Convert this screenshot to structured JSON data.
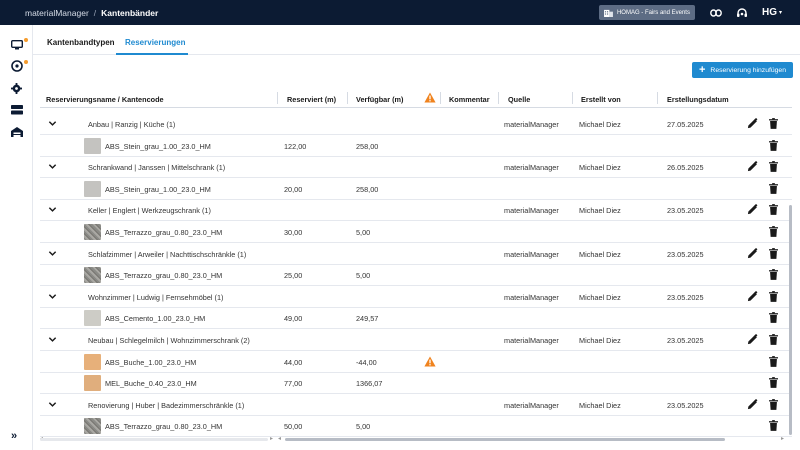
{
  "topbar": {
    "app_name": "materialManager",
    "separator": "/",
    "page_name": "Kantenbänder",
    "tenant_label": "HOMAG - Fairs and Events",
    "user_initials": "HG"
  },
  "tabs": [
    {
      "label": "Kantenbandtypen",
      "active": false
    },
    {
      "label": "Reservierungen",
      "active": true
    }
  ],
  "add_button": {
    "icon": "+",
    "label": "Reservierung hinzufügen"
  },
  "table": {
    "headers": {
      "name": "Reservierungsname / Kantencode",
      "reserved": "Reserviert (m)",
      "available": "Verfügbar (m)",
      "comment": "Kommentar",
      "source": "Quelle",
      "created_by": "Erstellt von",
      "created_date": "Erstellungsdatum"
    },
    "rows": [
      {
        "type": "group",
        "name": "Anbau | Ranzig | Küche (1)",
        "source": "materialManager",
        "created_by": "Michael Diez",
        "date": "27.05.2025"
      },
      {
        "type": "item",
        "code": "ABS_Stein_grau_1.00_23.0_HM",
        "reserved": "122,00",
        "available": "258,00",
        "swatch": "stein"
      },
      {
        "type": "group",
        "name": "Schrankwand | Janssen | Mittelschrank (1)",
        "source": "materialManager",
        "created_by": "Michael Diez",
        "date": "26.05.2025"
      },
      {
        "type": "item",
        "code": "ABS_Stein_grau_1.00_23.0_HM",
        "reserved": "20,00",
        "available": "258,00",
        "swatch": "stein"
      },
      {
        "type": "group",
        "name": "Keller | Englert | Werkzeugschrank (1)",
        "source": "materialManager",
        "created_by": "Michael Diez",
        "date": "23.05.2025"
      },
      {
        "type": "item",
        "code": "ABS_Terrazzo_grau_0.80_23.0_HM",
        "reserved": "30,00",
        "available": "5,00",
        "swatch": "terr"
      },
      {
        "type": "group",
        "name": "Schlafzimmer | Arweiler | Nachttischschränkle (1)",
        "source": "materialManager",
        "created_by": "Michael Diez",
        "date": "23.05.2025"
      },
      {
        "type": "item",
        "code": "ABS_Terrazzo_grau_0.80_23.0_HM",
        "reserved": "25,00",
        "available": "5,00",
        "swatch": "terr"
      },
      {
        "type": "group",
        "name": "Wohnzimmer | Ludwig | Fernsehmöbel (1)",
        "source": "materialManager",
        "created_by": "Michael Diez",
        "date": "23.05.2025"
      },
      {
        "type": "item",
        "code": "ABS_Cemento_1.00_23.0_HM",
        "reserved": "49,00",
        "available": "249,57",
        "swatch": "cem"
      },
      {
        "type": "group",
        "name": "Neubau | Schlegelmilch | Wohnzimmerschrank (2)",
        "source": "materialManager",
        "created_by": "Michael Diez",
        "date": "23.05.2025"
      },
      {
        "type": "item",
        "code": "ABS_Buche_1.00_23.0_HM",
        "reserved": "44,00",
        "available": "-44,00",
        "swatch": "buche",
        "warning": true
      },
      {
        "type": "item",
        "code": "MEL_Buche_0.40_23.0_HM",
        "reserved": "77,00",
        "available": "1366,07",
        "swatch": "buche2"
      },
      {
        "type": "group",
        "name": "Renovierung | Huber | Badezimmerschränkle (1)",
        "source": "materialManager",
        "created_by": "Michael Diez",
        "date": "23.05.2025"
      },
      {
        "type": "item",
        "code": "ABS_Terrazzo_grau_0.80_23.0_HM",
        "reserved": "50,00",
        "available": "5,00",
        "swatch": "terr"
      }
    ]
  },
  "colors": {
    "topbar_bg": "#0c1b33",
    "accent": "#1f8ad0",
    "warning": "#f0831e",
    "notification_dot": "#f59c2d"
  },
  "icons": {
    "sidebar": [
      "monitor-icon",
      "disc-icon",
      "settings-icon",
      "storage-icon",
      "warehouse-icon"
    ],
    "topbar": [
      "building-icon",
      "link-icon",
      "headset-icon"
    ]
  }
}
